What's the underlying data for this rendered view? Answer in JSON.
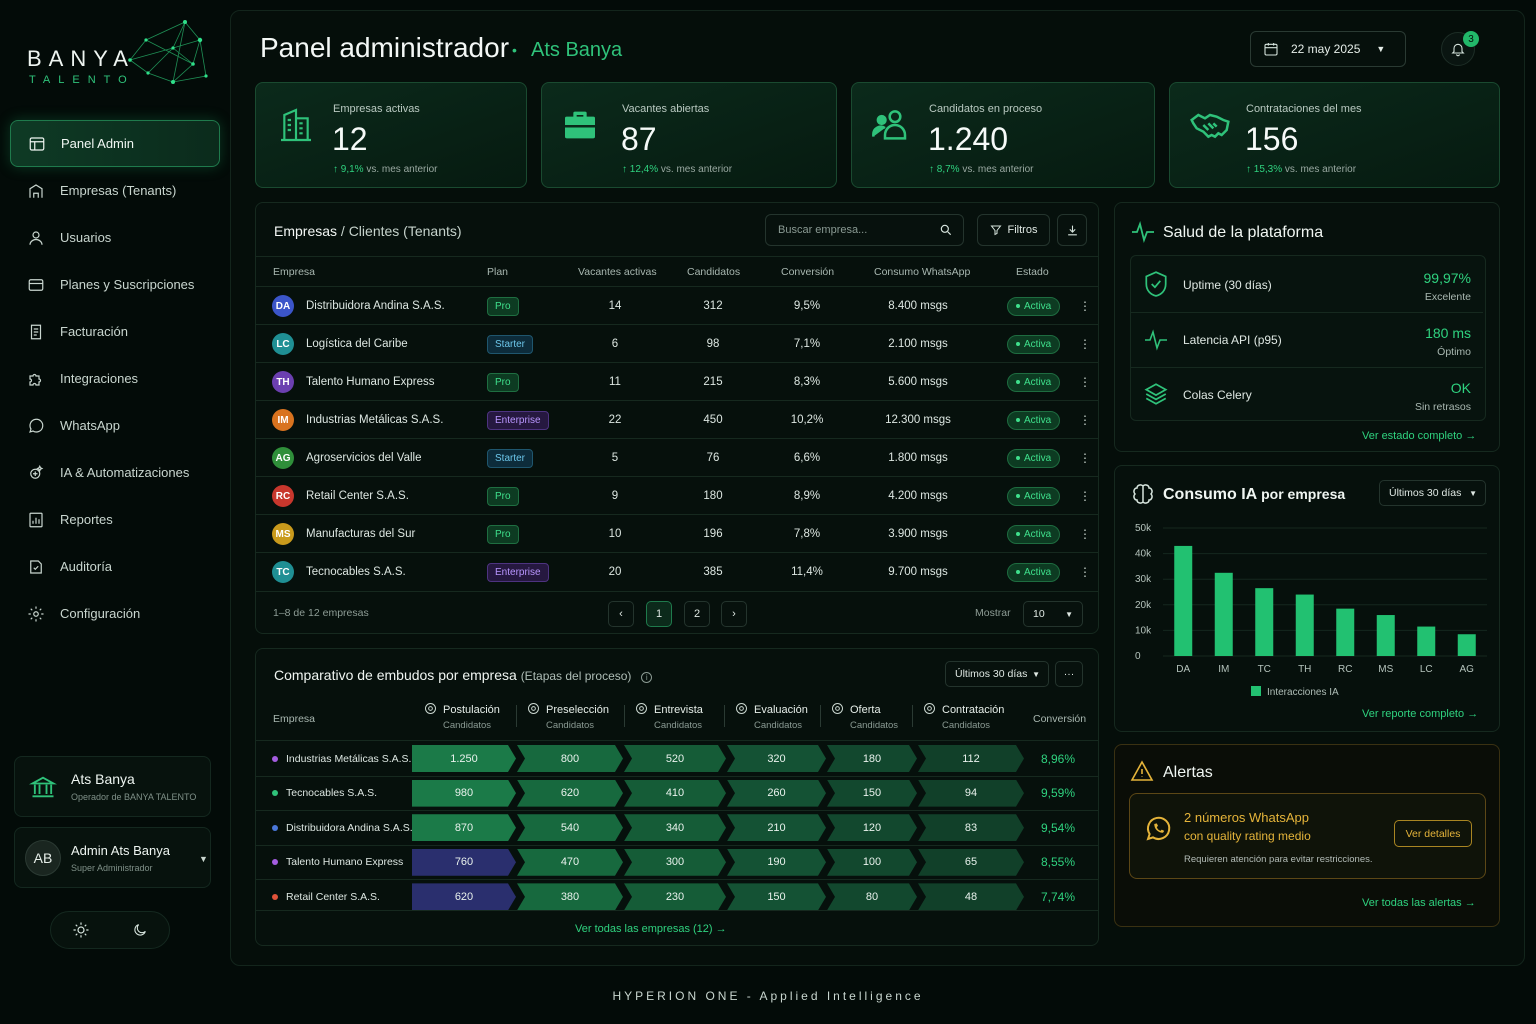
{
  "brand": {
    "name": "BANYA",
    "tagline": "TALENTO"
  },
  "nav": [
    {
      "label": "Panel Admin",
      "icon": "dashboard-icon",
      "active": true
    },
    {
      "label": "Empresas (Tenants)",
      "icon": "building-icon"
    },
    {
      "label": "Usuarios",
      "icon": "user-icon"
    },
    {
      "label": "Planes y Suscripciones",
      "icon": "card-icon"
    },
    {
      "label": "Facturación",
      "icon": "invoice-icon"
    },
    {
      "label": "Integraciones",
      "icon": "puzzle-icon"
    },
    {
      "label": "WhatsApp",
      "icon": "whatsapp-icon"
    },
    {
      "label": "IA & Automatizaciones",
      "icon": "ai-icon"
    },
    {
      "label": "Reportes",
      "icon": "report-icon"
    },
    {
      "label": "Auditoría",
      "icon": "audit-icon"
    },
    {
      "label": "Configuración",
      "icon": "gear-icon"
    }
  ],
  "org": {
    "name": "Ats Banya",
    "role": "Operador de BANYA TALENTO"
  },
  "user": {
    "initials": "AB",
    "name": "Admin Ats Banya",
    "role": "Super Administrador"
  },
  "header": {
    "title": "Panel administrador",
    "subtitle": "Ats Banya",
    "date": "22 may 2025",
    "notifications": "3"
  },
  "kpis": [
    {
      "label": "Empresas activas",
      "value": "12",
      "change": "↑ 9,1%",
      "suffix": "vs. mes anterior",
      "icon": "building-icon"
    },
    {
      "label": "Vacantes abiertas",
      "value": "87",
      "change": "↑ 12,4%",
      "suffix": "vs. mes anterior",
      "icon": "briefcase-icon"
    },
    {
      "label": "Candidatos en proceso",
      "value": "1.240",
      "change": "↑ 8,7%",
      "suffix": "vs. mes anterior",
      "icon": "users-icon"
    },
    {
      "label": "Contrataciones del mes",
      "value": "156",
      "change": "↑ 15,3%",
      "suffix": "vs. mes anterior",
      "icon": "handshake-icon"
    }
  ],
  "tenants": {
    "title": "Empresas",
    "title_rest": " / Clientes (Tenants)",
    "search_placeholder": "Buscar empresa...",
    "filters_label": "Filtros",
    "columns": [
      "Empresa",
      "Plan",
      "Vacantes activas",
      "Candidatos",
      "Conversión",
      "Consumo WhatsApp",
      "Estado"
    ],
    "rows": [
      {
        "initials": "DA",
        "color": "#3b55c9",
        "name": "Distribuidora Andina S.A.S.",
        "plan": "Pro",
        "vacancies": "14",
        "candidates": "312",
        "conversion": "9,5%",
        "whatsapp": "8.400 msgs",
        "status": "Activa"
      },
      {
        "initials": "LC",
        "color": "#1f8f94",
        "name": "Logística del Caribe",
        "plan": "Starter",
        "vacancies": "6",
        "candidates": "98",
        "conversion": "7,1%",
        "whatsapp": "2.100 msgs",
        "status": "Activa"
      },
      {
        "initials": "TH",
        "color": "#6b3fb0",
        "name": "Talento Humano Express",
        "plan": "Pro",
        "vacancies": "11",
        "candidates": "215",
        "conversion": "8,3%",
        "whatsapp": "5.600 msgs",
        "status": "Activa"
      },
      {
        "initials": "IM",
        "color": "#d9731f",
        "name": "Industrias Metálicas S.A.S.",
        "plan": "Enterprise",
        "vacancies": "22",
        "candidates": "450",
        "conversion": "10,2%",
        "whatsapp": "12.300 msgs",
        "status": "Activa"
      },
      {
        "initials": "AG",
        "color": "#2f8f3a",
        "name": "Agroservicios del Valle",
        "plan": "Starter",
        "vacancies": "5",
        "candidates": "76",
        "conversion": "6,6%",
        "whatsapp": "1.800 msgs",
        "status": "Activa"
      },
      {
        "initials": "RC",
        "color": "#c8372d",
        "name": "Retail Center S.A.S.",
        "plan": "Pro",
        "vacancies": "9",
        "candidates": "180",
        "conversion": "8,9%",
        "whatsapp": "4.200 msgs",
        "status": "Activa"
      },
      {
        "initials": "MS",
        "color": "#c99a1c",
        "name": "Manufacturas del Sur",
        "plan": "Pro",
        "vacancies": "10",
        "candidates": "196",
        "conversion": "7,8%",
        "whatsapp": "3.900 msgs",
        "status": "Activa"
      },
      {
        "initials": "TC",
        "color": "#1f8f94",
        "name": "Tecnocables S.A.S.",
        "plan": "Enterprise",
        "vacancies": "20",
        "candidates": "385",
        "conversion": "11,4%",
        "whatsapp": "9.700 msgs",
        "status": "Activa"
      }
    ],
    "range_text": "1–8 de 12 empresas",
    "pages": [
      "1",
      "2"
    ],
    "show_label": "Mostrar",
    "show_value": "10"
  },
  "funnel": {
    "title": "Comparativo de embudos por empresa",
    "title_suffix": "(Etapas del proceso)",
    "period": "Últimos 30 días",
    "company_label": "Empresa",
    "conversion_label": "Conversión",
    "stages": [
      {
        "name": "Postulación",
        "sub": "Candidatos",
        "icon": "target-icon"
      },
      {
        "name": "Preselección",
        "sub": "Candidatos",
        "icon": "filter-doc-icon"
      },
      {
        "name": "Entrevista",
        "sub": "Candidatos",
        "icon": "interview-icon"
      },
      {
        "name": "Evaluación",
        "sub": "Candidatos",
        "icon": "badge-icon"
      },
      {
        "name": "Oferta",
        "sub": "Candidatos",
        "icon": "offer-icon"
      },
      {
        "name": "Contratación",
        "sub": "Candidatos",
        "icon": "hire-icon"
      }
    ],
    "rows": [
      {
        "name": "Industrias Metálicas S.A.S.",
        "dot": "#a45de0",
        "values": [
          "1.250",
          "800",
          "520",
          "320",
          "180",
          "112"
        ],
        "conversion": "8,96%",
        "first": "#1b7a48"
      },
      {
        "name": "Tecnocables S.A.S.",
        "dot": "#2fc27a",
        "values": [
          "980",
          "620",
          "410",
          "260",
          "150",
          "94"
        ],
        "conversion": "9,59%",
        "first": "#1b7a48"
      },
      {
        "name": "Distribuidora Andina S.A.S.",
        "dot": "#4a77d9",
        "values": [
          "870",
          "540",
          "340",
          "210",
          "120",
          "83"
        ],
        "conversion": "9,54%",
        "first": "#1b7a48"
      },
      {
        "name": "Talento Humano Express",
        "dot": "#a45de0",
        "values": [
          "760",
          "470",
          "300",
          "190",
          "100",
          "65"
        ],
        "conversion": "8,55%",
        "first": "#2a2f6e"
      },
      {
        "name": "Retail Center S.A.S.",
        "dot": "#e0533a",
        "values": [
          "620",
          "380",
          "230",
          "150",
          "80",
          "48"
        ],
        "conversion": "7,74%",
        "first": "#2a2f6e"
      }
    ],
    "footer_link": "Ver todas las empresas  (12)"
  },
  "health": {
    "title": "Salud de la plataforma",
    "items": [
      {
        "label": "Uptime (30 días)",
        "value": "99,97%",
        "sub": "Excelente",
        "icon": "shield-check-icon"
      },
      {
        "label": "Latencia API (p95)",
        "value": "180 ms",
        "sub": "Óptimo",
        "icon": "pulse-icon"
      },
      {
        "label": "Colas Celery",
        "value": "OK",
        "sub": "Sin retrasos",
        "icon": "layers-icon"
      }
    ],
    "link": "Ver estado completo"
  },
  "ai_usage": {
    "title": "Consumo IA",
    "title_suffix": " por empresa",
    "period": "Últimos 30 días",
    "link": "Ver reporte completo"
  },
  "chart_data": {
    "type": "bar",
    "categories": [
      "DA",
      "IM",
      "TC",
      "TH",
      "RC",
      "MS",
      "LC",
      "AG"
    ],
    "series": [
      {
        "name": "Interacciones IA",
        "values": [
          43000,
          32500,
          26500,
          24000,
          18500,
          16000,
          11500,
          8500
        ]
      }
    ],
    "yticks": [
      "0",
      "10k",
      "20k",
      "30k",
      "40k",
      "50k"
    ],
    "ylim": [
      0,
      50000
    ],
    "legend_position": "bottom",
    "color": "#22c171"
  },
  "alerts": {
    "title": "Alertas",
    "item_title": "2 números WhatsApp",
    "item_sub": "con quality rating medio",
    "item_desc": "Requieren atención para evitar restricciones.",
    "button": "Ver detalles",
    "link": "Ver todas las alertas"
  },
  "footer": {
    "brand": "HYPERION ONE  -  Applied Intelligence"
  }
}
